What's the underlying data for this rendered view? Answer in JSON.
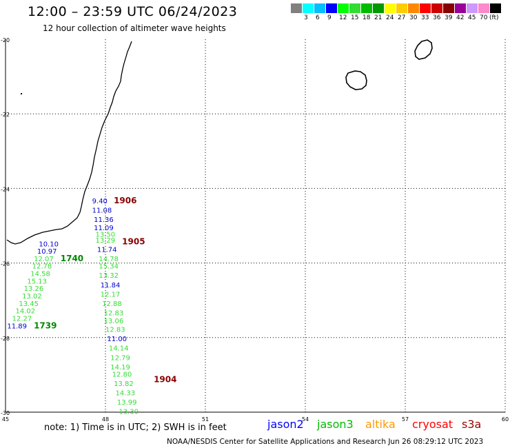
{
  "title": "12:00 – 23:59 UTC 06/24/2023",
  "subtitle": "12 hour collection of altimeter wave heights",
  "colorbar": {
    "unit": "(ft)",
    "entries": [
      {
        "label": "",
        "color": "#808080"
      },
      {
        "label": "3",
        "color": "#00ffff"
      },
      {
        "label": "6",
        "color": "#00bfff"
      },
      {
        "label": "9",
        "color": "#0000ff"
      },
      {
        "label": "12",
        "color": "#00ff00"
      },
      {
        "label": "15",
        "color": "#33dd33"
      },
      {
        "label": "18",
        "color": "#00bb00"
      },
      {
        "label": "21",
        "color": "#009900"
      },
      {
        "label": "24",
        "color": "#ffff00"
      },
      {
        "label": "27",
        "color": "#ffcc00"
      },
      {
        "label": "30",
        "color": "#ff8800"
      },
      {
        "label": "33",
        "color": "#ff0000"
      },
      {
        "label": "36",
        "color": "#cc0000"
      },
      {
        "label": "39",
        "color": "#880000"
      },
      {
        "label": "42",
        "color": "#990099"
      },
      {
        "label": "45",
        "color": "#cc99ff"
      },
      {
        "label": "70",
        "color": "#ff88cc"
      },
      {
        "label": "",
        "color": "#000000"
      }
    ]
  },
  "axes": {
    "lon_ticks": [
      "45",
      "48",
      "51",
      "54",
      "57",
      "60"
    ],
    "lat_ticks": [
      "-20",
      "-22",
      "-24",
      "-26",
      "-28",
      "-30"
    ]
  },
  "wave_labels": [
    {
      "text": "9.40",
      "color": "#0000cc",
      "lon": 47.6,
      "lat": -24.4
    },
    {
      "text": "11.08",
      "color": "#0000cc",
      "lon": 47.6,
      "lat": -24.65
    },
    {
      "text": "11.36",
      "color": "#0000cc",
      "lon": 47.65,
      "lat": -24.9
    },
    {
      "text": "11.09",
      "color": "#0000cc",
      "lon": 47.65,
      "lat": -25.12
    },
    {
      "text": "13.50",
      "color": "#33dd33",
      "lon": 47.7,
      "lat": -25.3
    },
    {
      "text": "13.29",
      "color": "#33dd33",
      "lon": 47.7,
      "lat": -25.45
    },
    {
      "text": "11.74",
      "color": "#0000cc",
      "lon": 47.75,
      "lat": -25.7
    },
    {
      "text": "14.78",
      "color": "#33dd33",
      "lon": 47.8,
      "lat": -25.95
    },
    {
      "text": "15.34",
      "color": "#33dd33",
      "lon": 47.8,
      "lat": -26.15
    },
    {
      "text": "13.32",
      "color": "#33dd33",
      "lon": 47.8,
      "lat": -26.4
    },
    {
      "text": "11.84",
      "color": "#0000cc",
      "lon": 47.85,
      "lat": -26.65
    },
    {
      "text": "12.17",
      "color": "#33dd33",
      "lon": 47.85,
      "lat": -26.9
    },
    {
      "text": "12.88",
      "color": "#33dd33",
      "lon": 47.9,
      "lat": -27.15
    },
    {
      "text": "12.83",
      "color": "#33dd33",
      "lon": 47.95,
      "lat": -27.4
    },
    {
      "text": "13.06",
      "color": "#33dd33",
      "lon": 47.95,
      "lat": -27.62
    },
    {
      "text": "12.83",
      "color": "#33dd33",
      "lon": 48.0,
      "lat": -27.85
    },
    {
      "text": "11.00",
      "color": "#0000cc",
      "lon": 48.05,
      "lat": -28.1
    },
    {
      "text": "14.14",
      "color": "#33dd33",
      "lon": 48.1,
      "lat": -28.35
    },
    {
      "text": "12.79",
      "color": "#33dd33",
      "lon": 48.15,
      "lat": -28.6
    },
    {
      "text": "14.19",
      "color": "#33dd33",
      "lon": 48.15,
      "lat": -28.85
    },
    {
      "text": "12.80",
      "color": "#33dd33",
      "lon": 48.2,
      "lat": -29.05
    },
    {
      "text": "13.82",
      "color": "#33dd33",
      "lon": 48.25,
      "lat": -29.3
    },
    {
      "text": "14.33",
      "color": "#33dd33",
      "lon": 48.3,
      "lat": -29.55
    },
    {
      "text": "13.99",
      "color": "#33dd33",
      "lon": 48.35,
      "lat": -29.8
    },
    {
      "text": "13.30",
      "color": "#33dd33",
      "lon": 48.4,
      "lat": -30.05
    },
    {
      "text": "10.10",
      "color": "#0000cc",
      "lon": 46.0,
      "lat": -25.55
    },
    {
      "text": "10.97",
      "color": "#0000cc",
      "lon": 45.95,
      "lat": -25.75
    },
    {
      "text": "12.07",
      "color": "#33dd33",
      "lon": 45.85,
      "lat": -25.95
    },
    {
      "text": "12.78",
      "color": "#33dd33",
      "lon": 45.8,
      "lat": -26.15
    },
    {
      "text": "14.58",
      "color": "#33dd33",
      "lon": 45.75,
      "lat": -26.35
    },
    {
      "text": "15.13",
      "color": "#33dd33",
      "lon": 45.65,
      "lat": -26.55
    },
    {
      "text": "13.26",
      "color": "#33dd33",
      "lon": 45.55,
      "lat": -26.75
    },
    {
      "text": "13.02",
      "color": "#33dd33",
      "lon": 45.5,
      "lat": -26.95
    },
    {
      "text": "13.45",
      "color": "#33dd33",
      "lon": 45.4,
      "lat": -27.15
    },
    {
      "text": "14.02",
      "color": "#33dd33",
      "lon": 45.3,
      "lat": -27.35
    },
    {
      "text": "12.27",
      "color": "#33dd33",
      "lon": 45.2,
      "lat": -27.55
    },
    {
      "text": "11.89",
      "color": "#0000cc",
      "lon": 45.05,
      "lat": -27.75
    }
  ],
  "time_labels": [
    {
      "text": "1906",
      "color": "#880000",
      "lon": 48.25,
      "lat": -24.4
    },
    {
      "text": "1905",
      "color": "#880000",
      "lon": 48.5,
      "lat": -25.5
    },
    {
      "text": "1740",
      "color": "#008800",
      "lon": 46.65,
      "lat": -25.95
    },
    {
      "text": "1739",
      "color": "#008800",
      "lon": 45.85,
      "lat": -27.75
    },
    {
      "text": "1904",
      "color": "#880000",
      "lon": 49.45,
      "lat": -29.2
    }
  ],
  "note": "note:  1) Time is in UTC; 2) SWH is in feet",
  "missions": [
    {
      "text": "jason2",
      "color": "#0000ff"
    },
    {
      "text": "jason3",
      "color": "#00bb00"
    },
    {
      "text": "altika",
      "color": "#ff9900"
    },
    {
      "text": "cryosat",
      "color": "#ff0000"
    },
    {
      "text": "s3a",
      "color": "#990000"
    }
  ],
  "footer": "NOAA/NESDIS Center for Satellite Applications and Research    Jun 26 08:29:12 UTC 2023"
}
